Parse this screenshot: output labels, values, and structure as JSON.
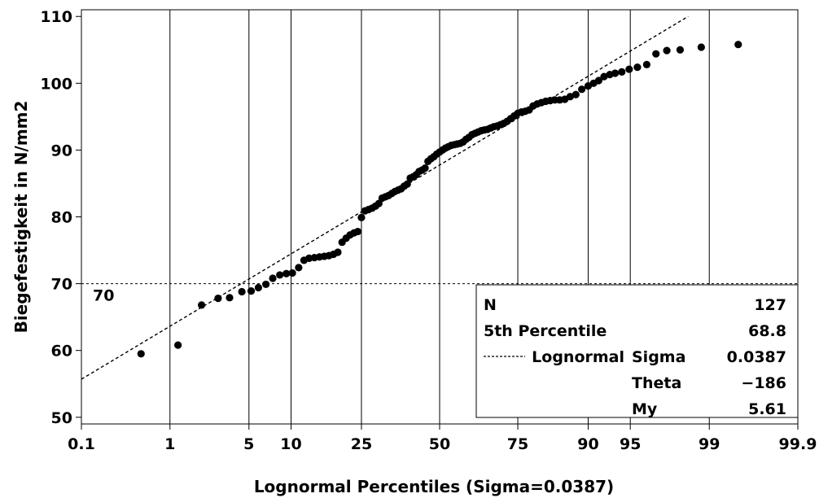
{
  "chart_data": {
    "type": "scatter",
    "xlabel": "Lognormal Percentiles (Sigma=0.0387)",
    "ylabel": "Biegefestigkeit in N/mm2",
    "x_scale": "normal-probability",
    "x_ticks": [
      "0.1",
      "1",
      "5",
      "10",
      "25",
      "50",
      "75",
      "90",
      "95",
      "99",
      "99.9"
    ],
    "y_ticks": [
      "50",
      "60",
      "70",
      "80",
      "90",
      "100",
      "110"
    ],
    "xlim": [
      0.1,
      99.9
    ],
    "ylim": [
      49,
      111
    ],
    "grid": "vertical lines at x ticks",
    "reference_line": {
      "y": 70,
      "label": "70"
    },
    "fit_line": {
      "name": "Lognormal",
      "style": "dashed",
      "points": [
        [
          0.1,
          55.7
        ],
        [
          98.4,
          110
        ]
      ]
    },
    "series": [
      {
        "name": "Biegefestigkeit",
        "points": [
          [
            0.5,
            59.5
          ],
          [
            1.2,
            60.8
          ],
          [
            2.0,
            66.8
          ],
          [
            2.8,
            67.8
          ],
          [
            3.5,
            67.9
          ],
          [
            4.4,
            68.8
          ],
          [
            5.2,
            68.9
          ],
          [
            5.9,
            69.4
          ],
          [
            6.7,
            69.9
          ],
          [
            7.5,
            70.8
          ],
          [
            8.4,
            71.3
          ],
          [
            9.3,
            71.5
          ],
          [
            10.2,
            71.6
          ],
          [
            11.2,
            72.4
          ],
          [
            12.1,
            73.5
          ],
          [
            13.0,
            73.8
          ],
          [
            14.0,
            73.9
          ],
          [
            15.0,
            74.0
          ],
          [
            16.0,
            74.1
          ],
          [
            17.0,
            74.2
          ],
          [
            18.0,
            74.4
          ],
          [
            19.0,
            74.7
          ],
          [
            20.0,
            76.2
          ],
          [
            21.0,
            76.8
          ],
          [
            22.0,
            77.3
          ],
          [
            23.0,
            77.6
          ],
          [
            24.0,
            77.8
          ],
          [
            25.0,
            79.9
          ],
          [
            26.0,
            80.9
          ],
          [
            27.0,
            81.1
          ],
          [
            28.0,
            81.3
          ],
          [
            29.0,
            81.6
          ],
          [
            30.0,
            82.0
          ],
          [
            31.0,
            82.8
          ],
          [
            32.0,
            83.0
          ],
          [
            33.0,
            83.2
          ],
          [
            34.0,
            83.5
          ],
          [
            35.0,
            83.8
          ],
          [
            36.0,
            84.0
          ],
          [
            37.0,
            84.2
          ],
          [
            38.0,
            84.6
          ],
          [
            39.0,
            84.9
          ],
          [
            40.0,
            85.8
          ],
          [
            41.0,
            86.0
          ],
          [
            42.0,
            86.3
          ],
          [
            43.0,
            86.8
          ],
          [
            44.0,
            87.0
          ],
          [
            45.0,
            87.3
          ],
          [
            46.0,
            88.3
          ],
          [
            47.0,
            88.7
          ],
          [
            48.0,
            89.0
          ],
          [
            49.0,
            89.4
          ],
          [
            50.0,
            89.7
          ],
          [
            51.0,
            90.0
          ],
          [
            52.0,
            90.3
          ],
          [
            53.0,
            90.5
          ],
          [
            54.0,
            90.7
          ],
          [
            55.0,
            90.8
          ],
          [
            56.0,
            90.9
          ],
          [
            57.0,
            91.0
          ],
          [
            58.0,
            91.2
          ],
          [
            59.0,
            91.6
          ],
          [
            60.0,
            91.9
          ],
          [
            61.0,
            92.3
          ],
          [
            62.0,
            92.5
          ],
          [
            63.0,
            92.7
          ],
          [
            64.0,
            92.9
          ],
          [
            65.0,
            93.0
          ],
          [
            66.0,
            93.1
          ],
          [
            67.0,
            93.3
          ],
          [
            68.0,
            93.5
          ],
          [
            69.0,
            93.6
          ],
          [
            70.0,
            93.8
          ],
          [
            71.0,
            94.0
          ],
          [
            72.0,
            94.3
          ],
          [
            73.0,
            94.7
          ],
          [
            74.0,
            95.1
          ],
          [
            75.0,
            95.5
          ],
          [
            76.0,
            95.7
          ],
          [
            77.0,
            95.8
          ],
          [
            78.0,
            96.0
          ],
          [
            79.0,
            96.6
          ],
          [
            80.0,
            96.9
          ],
          [
            81.0,
            97.1
          ],
          [
            82.0,
            97.3
          ],
          [
            83.0,
            97.4
          ],
          [
            84.0,
            97.5
          ],
          [
            85.0,
            97.5
          ],
          [
            86.0,
            97.6
          ],
          [
            87.0,
            98.0
          ],
          [
            88.0,
            98.3
          ],
          [
            89.0,
            99.1
          ],
          [
            90.0,
            99.6
          ],
          [
            90.8,
            100.0
          ],
          [
            91.5,
            100.4
          ],
          [
            92.2,
            101.0
          ],
          [
            92.9,
            101.3
          ],
          [
            93.5,
            101.5
          ],
          [
            94.2,
            101.7
          ],
          [
            94.9,
            102.1
          ],
          [
            95.6,
            102.4
          ],
          [
            96.3,
            102.8
          ],
          [
            96.9,
            104.4
          ],
          [
            97.5,
            104.9
          ],
          [
            98.1,
            105.0
          ],
          [
            98.8,
            105.4
          ],
          [
            99.5,
            105.8
          ]
        ]
      }
    ],
    "legend": {
      "position": "bottom-right inset",
      "rows": [
        {
          "label": "N",
          "param": "",
          "value": "127",
          "line": false
        },
        {
          "label": "5th Percentile",
          "param": "",
          "value": "68.8",
          "line": false
        },
        {
          "label": "Lognormal",
          "param": "Sigma",
          "value": "0.0387",
          "line": true
        },
        {
          "label": "",
          "param": "Theta",
          "value": "−186",
          "line": false
        },
        {
          "label": "",
          "param": "My",
          "value": "5.61",
          "line": false
        }
      ]
    }
  }
}
